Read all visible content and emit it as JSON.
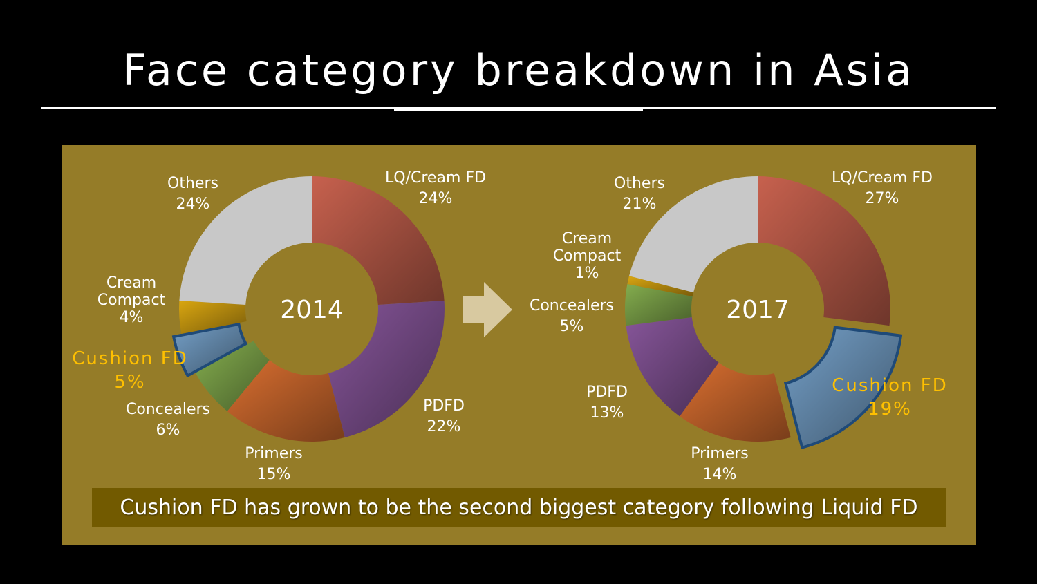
{
  "title": "Face category breakdown in Asia",
  "caption": "Cushion FD has grown to be the second biggest category following Liquid FD",
  "colors": {
    "background": "#000000",
    "panel": "#957c28",
    "caption_box": "#725a00",
    "highlight_text": "#ffc000",
    "label_text": "#ffffff",
    "arrow": "#d8c9a0"
  },
  "chart_data": [
    {
      "type": "pie",
      "center_label": "2014",
      "series": [
        {
          "name": "LQ/Cream FD",
          "value_label": "24%",
          "value": 24,
          "color": "#b85a48"
        },
        {
          "name": "PDFD",
          "value_label": "22%",
          "value": 22,
          "color": "#7c4f8e"
        },
        {
          "name": "Primers",
          "value_label": "15%",
          "value": 15,
          "color": "#c8662c"
        },
        {
          "name": "Concealers",
          "value_label": "6%",
          "value": 6,
          "color": "#7aa048"
        },
        {
          "name": "Cushion FD",
          "value_label": "5%",
          "value": 5,
          "color": "#6b93b8",
          "highlight": true
        },
        {
          "name": "Cream Compact",
          "value_label": "4%",
          "value": 4,
          "color": "#c99a10"
        },
        {
          "name": "Others",
          "value_label": "24%",
          "value": 24,
          "color": "#c8c8c8"
        }
      ]
    },
    {
      "type": "pie",
      "center_label": "2017",
      "series": [
        {
          "name": "LQ/Cream FD",
          "value_label": "27%",
          "value": 27,
          "color": "#b85a48"
        },
        {
          "name": "Cushion FD",
          "value_label": "19%",
          "value": 19,
          "color": "#6b93b8",
          "highlight": true
        },
        {
          "name": "Primers",
          "value_label": "14%",
          "value": 14,
          "color": "#c8662c"
        },
        {
          "name": "PDFD",
          "value_label": "13%",
          "value": 13,
          "color": "#7c4f8e"
        },
        {
          "name": "Concealers",
          "value_label": "5%",
          "value": 5,
          "color": "#7aa048"
        },
        {
          "name": "Cream Compact",
          "value_label": "1%",
          "value": 1,
          "color": "#c99a10"
        },
        {
          "name": "Others",
          "value_label": "21%",
          "value": 21,
          "color": "#c8c8c8"
        }
      ]
    }
  ]
}
